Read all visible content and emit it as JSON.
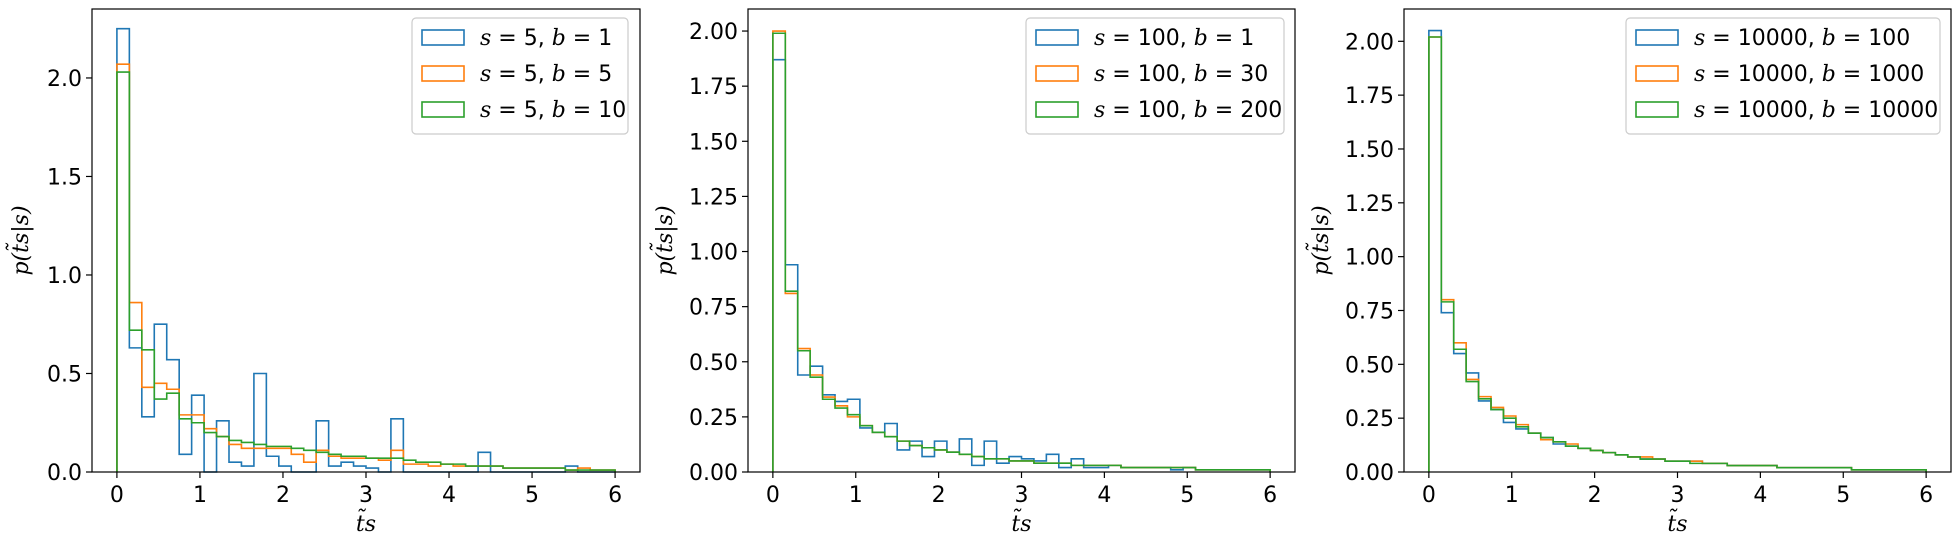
{
  "chart_data": [
    {
      "type": "histogram-step",
      "xlim": [
        -0.3,
        6.3
      ],
      "ylim": [
        0,
        2.35
      ],
      "xticks": [
        "0",
        "1",
        "2",
        "3",
        "4",
        "5",
        "6"
      ],
      "yticks": [
        "0.0",
        "0.5",
        "1.0",
        "1.5",
        "2.0"
      ],
      "xlabel": "t̃s",
      "ylabel": "p(t̃s|s)",
      "legend_position": "top-right",
      "bin_width": 0.15,
      "series": [
        {
          "name": "s = 5, b = 1",
          "color": "#1f77b4",
          "values": [
            2.25,
            0.63,
            0.28,
            0.75,
            0.57,
            0.09,
            0.39,
            0.0,
            0.26,
            0.05,
            0.03,
            0.5,
            0.08,
            0.03,
            0.0,
            0.0,
            0.26,
            0.03,
            0.05,
            0.03,
            0.02,
            0.0,
            0.27,
            0.0,
            0.0,
            0.0,
            0.0,
            0.0,
            0.0,
            0.1,
            0.0,
            0.0,
            0.0,
            0.0,
            0.0,
            0.0,
            0.03,
            0.0,
            0.0,
            0.0
          ]
        },
        {
          "name": "s = 5, b = 5",
          "color": "#ff7f0e",
          "values": [
            2.07,
            0.86,
            0.43,
            0.45,
            0.42,
            0.29,
            0.29,
            0.22,
            0.18,
            0.14,
            0.12,
            0.12,
            0.12,
            0.12,
            0.09,
            0.05,
            0.11,
            0.08,
            0.07,
            0.07,
            0.07,
            0.06,
            0.11,
            0.04,
            0.04,
            0.03,
            0.04,
            0.03,
            0.03,
            0.03,
            0.03,
            0.02,
            0.02,
            0.02,
            0.02,
            0.02,
            0.01,
            0.02,
            0.01,
            0.01
          ]
        },
        {
          "name": "s = 5, b = 10",
          "color": "#2ca02c",
          "values": [
            2.03,
            0.72,
            0.62,
            0.37,
            0.4,
            0.27,
            0.25,
            0.2,
            0.18,
            0.16,
            0.15,
            0.14,
            0.13,
            0.13,
            0.12,
            0.11,
            0.1,
            0.09,
            0.08,
            0.08,
            0.07,
            0.07,
            0.07,
            0.06,
            0.05,
            0.05,
            0.04,
            0.04,
            0.03,
            0.03,
            0.03,
            0.02,
            0.02,
            0.02,
            0.02,
            0.02,
            0.01,
            0.01,
            0.01,
            0.01
          ]
        }
      ]
    },
    {
      "type": "histogram-step",
      "xlim": [
        -0.3,
        6.3
      ],
      "ylim": [
        0,
        2.1
      ],
      "xticks": [
        "0",
        "1",
        "2",
        "3",
        "4",
        "5",
        "6"
      ],
      "yticks": [
        "0.00",
        "0.25",
        "0.50",
        "0.75",
        "1.00",
        "1.25",
        "1.50",
        "1.75",
        "2.00"
      ],
      "xlabel": "t̃s",
      "ylabel": "p(t̃s|s)",
      "legend_position": "top-right",
      "bin_width": 0.15,
      "series": [
        {
          "name": "s = 100, b = 1",
          "color": "#1f77b4",
          "values": [
            1.87,
            0.94,
            0.44,
            0.48,
            0.35,
            0.32,
            0.33,
            0.2,
            0.18,
            0.22,
            0.1,
            0.14,
            0.07,
            0.14,
            0.09,
            0.15,
            0.03,
            0.14,
            0.04,
            0.07,
            0.06,
            0.05,
            0.08,
            0.02,
            0.06,
            0.02,
            0.02,
            0.03,
            0.02,
            0.02,
            0.02,
            0.02,
            0.01,
            0.02,
            0.01,
            0.01,
            0.01,
            0.01,
            0.01,
            0.01
          ]
        },
        {
          "name": "s = 100, b = 30",
          "color": "#ff7f0e",
          "values": [
            2.0,
            0.81,
            0.56,
            0.44,
            0.34,
            0.3,
            0.25,
            0.21,
            0.18,
            0.16,
            0.14,
            0.12,
            0.11,
            0.1,
            0.09,
            0.08,
            0.07,
            0.06,
            0.06,
            0.05,
            0.05,
            0.04,
            0.04,
            0.04,
            0.03,
            0.03,
            0.03,
            0.03,
            0.02,
            0.02,
            0.02,
            0.02,
            0.02,
            0.02,
            0.01,
            0.01,
            0.01,
            0.01,
            0.01,
            0.01
          ]
        },
        {
          "name": "s = 100, b = 200",
          "color": "#2ca02c",
          "values": [
            1.99,
            0.82,
            0.55,
            0.43,
            0.33,
            0.29,
            0.26,
            0.21,
            0.18,
            0.16,
            0.14,
            0.12,
            0.11,
            0.1,
            0.09,
            0.08,
            0.07,
            0.06,
            0.06,
            0.05,
            0.05,
            0.04,
            0.04,
            0.04,
            0.03,
            0.03,
            0.03,
            0.03,
            0.02,
            0.02,
            0.02,
            0.02,
            0.02,
            0.02,
            0.01,
            0.01,
            0.01,
            0.01,
            0.01,
            0.01
          ]
        }
      ]
    },
    {
      "type": "histogram-step",
      "xlim": [
        -0.3,
        6.3
      ],
      "ylim": [
        0,
        2.15
      ],
      "xticks": [
        "0",
        "1",
        "2",
        "3",
        "4",
        "5",
        "6"
      ],
      "yticks": [
        "0.00",
        "0.25",
        "0.50",
        "0.75",
        "1.00",
        "1.25",
        "1.50",
        "1.75",
        "2.00"
      ],
      "xlabel": "t̃s",
      "ylabel": "p(t̃s|s)",
      "legend_position": "top-right",
      "bin_width": 0.15,
      "series": [
        {
          "name": "s = 10000, b = 100",
          "color": "#1f77b4",
          "values": [
            2.05,
            0.74,
            0.55,
            0.46,
            0.33,
            0.29,
            0.23,
            0.2,
            0.18,
            0.16,
            0.13,
            0.12,
            0.11,
            0.1,
            0.09,
            0.08,
            0.07,
            0.06,
            0.06,
            0.05,
            0.05,
            0.05,
            0.04,
            0.04,
            0.03,
            0.03,
            0.03,
            0.03,
            0.02,
            0.02,
            0.02,
            0.02,
            0.02,
            0.02,
            0.01,
            0.01,
            0.01,
            0.01,
            0.01,
            0.01
          ]
        },
        {
          "name": "s = 10000, b = 1000",
          "color": "#ff7f0e",
          "values": [
            2.02,
            0.8,
            0.6,
            0.43,
            0.35,
            0.3,
            0.26,
            0.22,
            0.18,
            0.15,
            0.14,
            0.13,
            0.11,
            0.1,
            0.09,
            0.08,
            0.07,
            0.07,
            0.06,
            0.05,
            0.05,
            0.05,
            0.04,
            0.04,
            0.03,
            0.03,
            0.03,
            0.03,
            0.02,
            0.02,
            0.02,
            0.02,
            0.02,
            0.02,
            0.01,
            0.01,
            0.01,
            0.01,
            0.01,
            0.01
          ]
        },
        {
          "name": "s = 10000, b = 10000",
          "color": "#2ca02c",
          "values": [
            2.02,
            0.79,
            0.57,
            0.42,
            0.34,
            0.29,
            0.25,
            0.21,
            0.18,
            0.16,
            0.14,
            0.12,
            0.11,
            0.1,
            0.09,
            0.08,
            0.07,
            0.06,
            0.06,
            0.05,
            0.05,
            0.04,
            0.04,
            0.04,
            0.03,
            0.03,
            0.03,
            0.03,
            0.02,
            0.02,
            0.02,
            0.02,
            0.02,
            0.02,
            0.01,
            0.01,
            0.01,
            0.01,
            0.01,
            0.01
          ]
        }
      ]
    }
  ]
}
